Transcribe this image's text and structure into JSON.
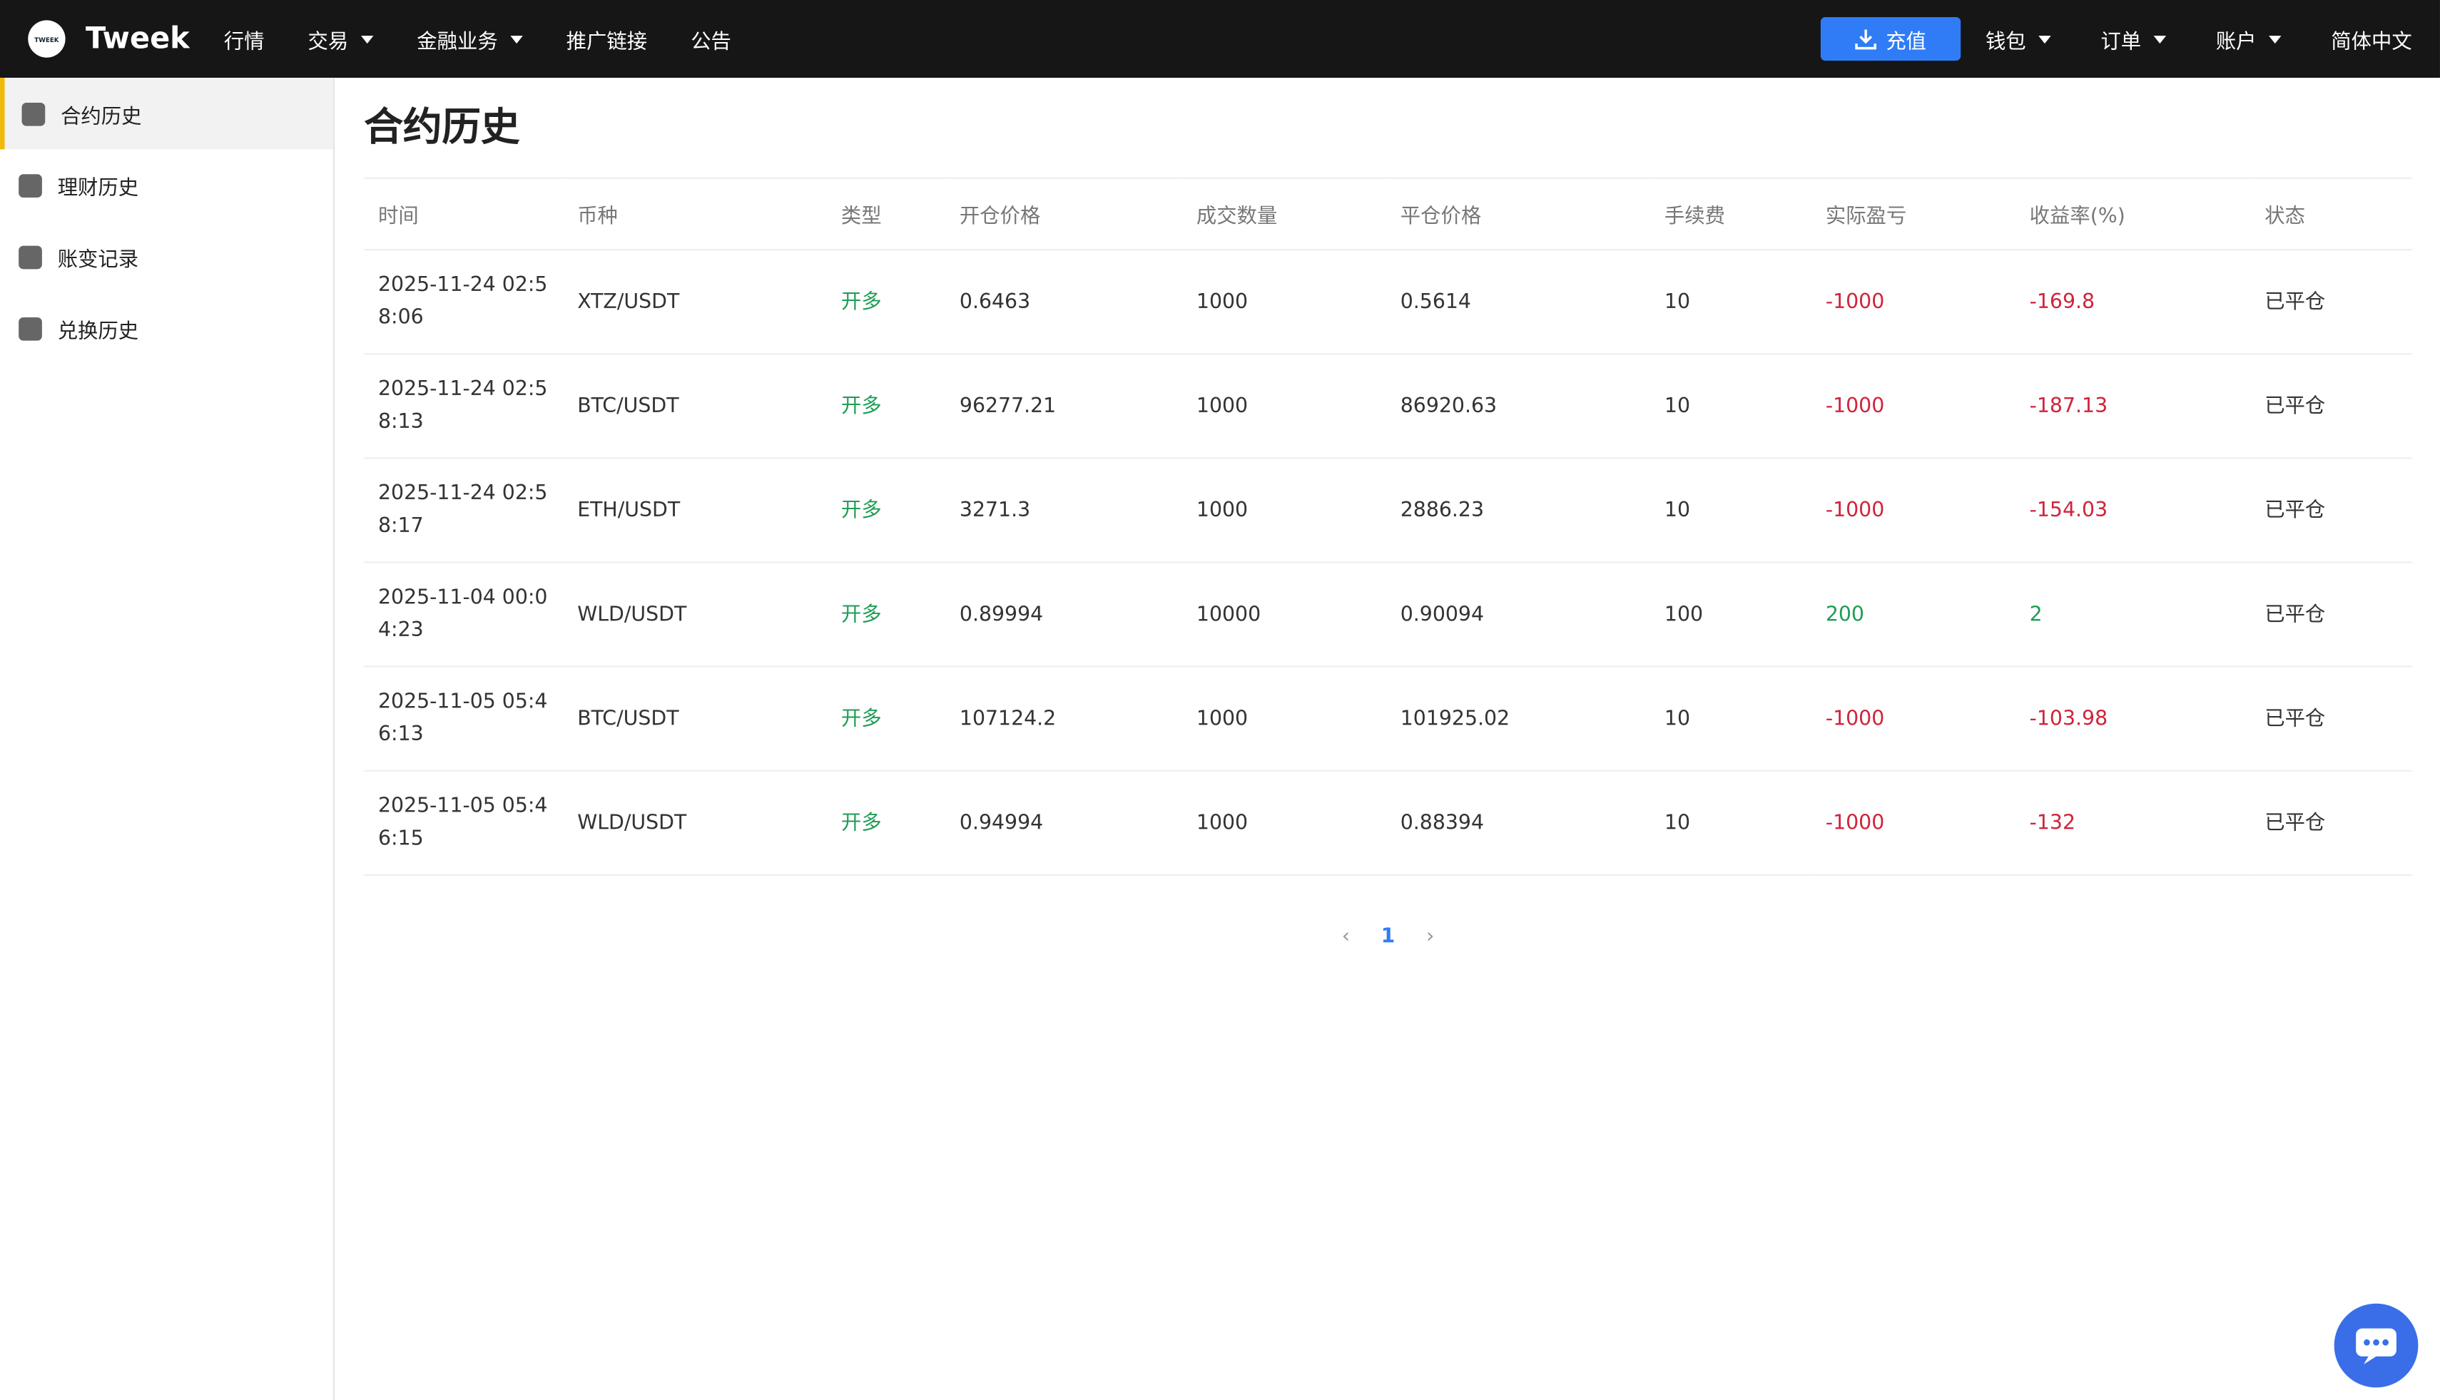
{
  "header": {
    "logo_mark": "TWEEK",
    "brand": "Tweek",
    "nav": [
      {
        "label": "行情",
        "dropdown": false
      },
      {
        "label": "交易",
        "dropdown": true
      },
      {
        "label": "金融业务",
        "dropdown": true
      },
      {
        "label": "推广链接",
        "dropdown": false
      },
      {
        "label": "公告",
        "dropdown": false
      }
    ],
    "deposit": "充值",
    "right_nav": [
      {
        "label": "钱包",
        "dropdown": true
      },
      {
        "label": "订单",
        "dropdown": true
      },
      {
        "label": "账户",
        "dropdown": true
      },
      {
        "label": "简体中文",
        "dropdown": false
      }
    ]
  },
  "sidebar": {
    "items": [
      "合约历史",
      "理财历史",
      "账变记录",
      "兑换历史"
    ],
    "active": 0
  },
  "content": {
    "title": "合约历史",
    "table": {
      "headers": [
        "时间",
        "币种",
        "类型",
        "开仓价格",
        "成交数量",
        "平仓价格",
        "手续费",
        "实际盈亏",
        "收益率(%)",
        "状态"
      ],
      "rows": [
        [
          "2025-11-24 02:58:06",
          "XTZ/USDT",
          "开多",
          "0.6463",
          "1000",
          "0.5614",
          "10",
          "-1000",
          "-169.8",
          "已平仓"
        ],
        [
          "2025-11-24 02:58:13",
          "BTC/USDT",
          "开多",
          "96277.21",
          "1000",
          "86920.63",
          "10",
          "-1000",
          "-187.13",
          "已平仓"
        ],
        [
          "2025-11-24 02:58:17",
          "ETH/USDT",
          "开多",
          "3271.3",
          "1000",
          "2886.23",
          "10",
          "-1000",
          "-154.03",
          "已平仓"
        ],
        [
          "2025-11-04 00:04:23",
          "WLD/USDT",
          "开多",
          "0.89994",
          "10000",
          "0.90094",
          "100",
          "200",
          "2",
          "已平仓"
        ],
        [
          "2025-11-05 05:46:13",
          "BTC/USDT",
          "开多",
          "107124.2",
          "1000",
          "101925.02",
          "10",
          "-1000",
          "-103.98",
          "已平仓"
        ],
        [
          "2025-11-05 05:46:15",
          "WLD/USDT",
          "开多",
          "0.94994",
          "1000",
          "0.88394",
          "10",
          "-1000",
          "-132",
          "已平仓"
        ]
      ]
    },
    "pagination": {
      "pages": [
        "1"
      ],
      "current": 0
    }
  }
}
